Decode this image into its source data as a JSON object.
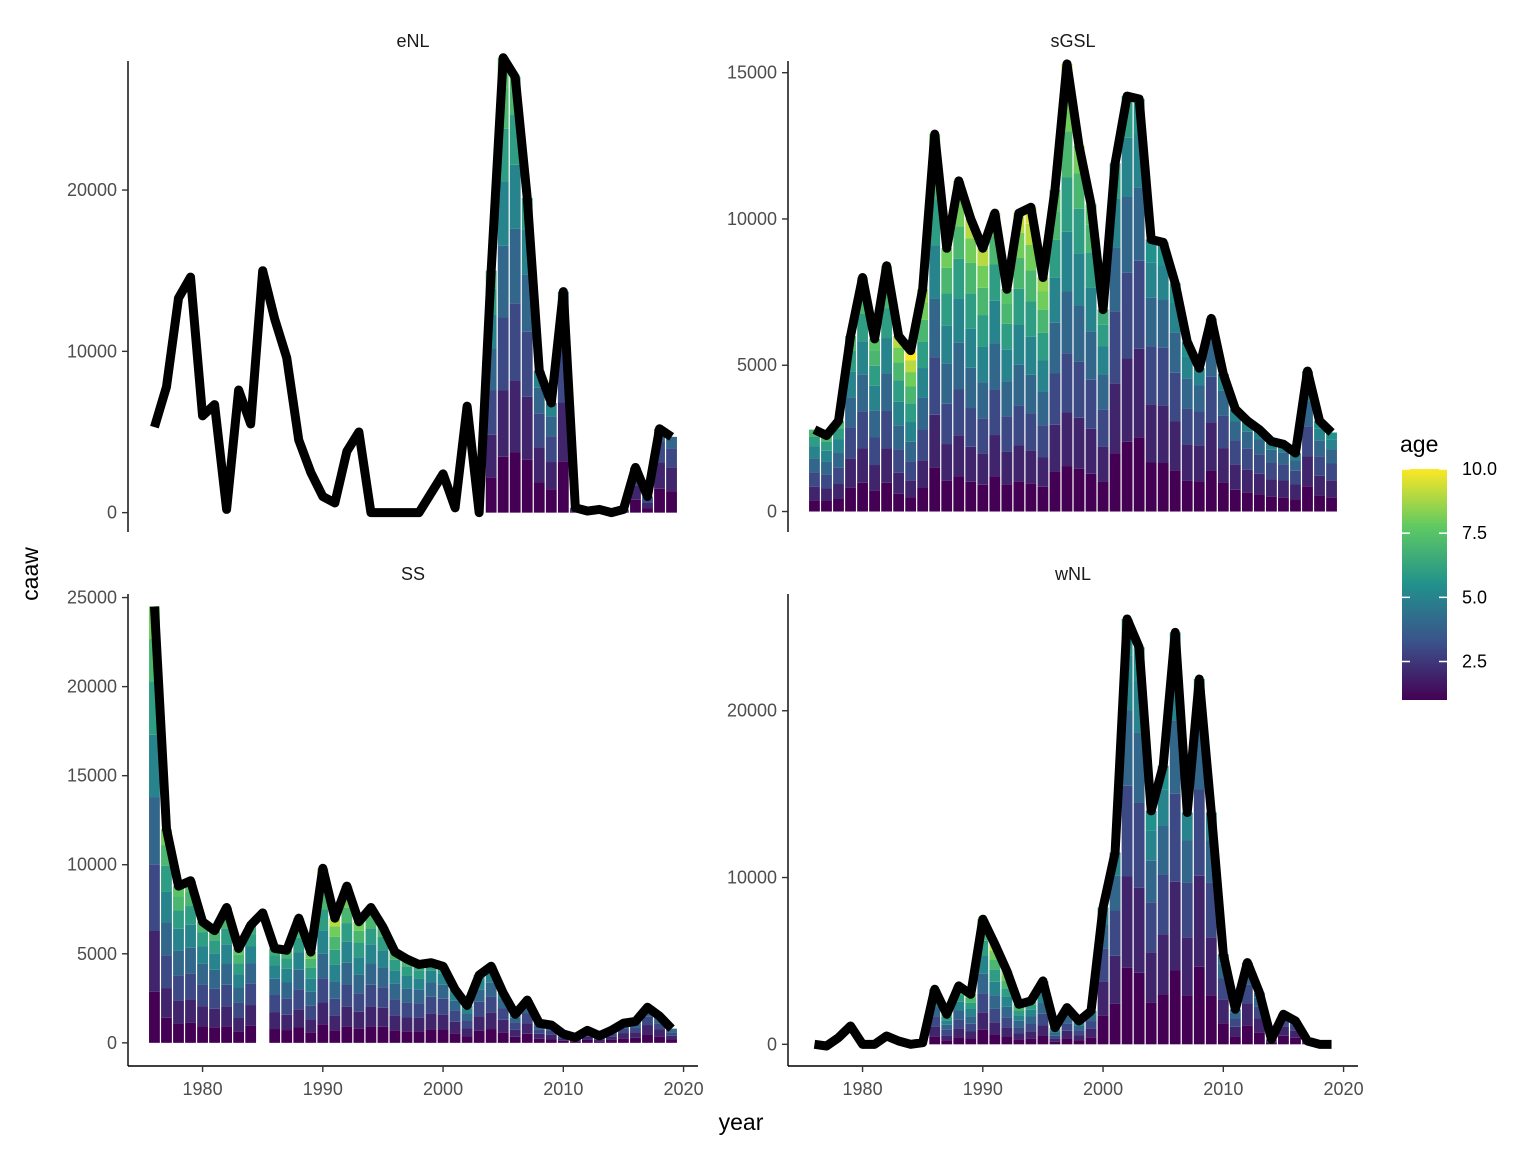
{
  "chart_data": {
    "type": "bar",
    "layout": "faceted stacked bar (by age) with total catch line overlay",
    "xlabel": "year",
    "ylabel": "caaw",
    "legend": {
      "title": "age",
      "ticks": [
        2.5,
        5.0,
        7.5,
        10.0
      ],
      "tick_labels": [
        "2.5",
        "5.0",
        "7.5",
        "10.0"
      ],
      "range": [
        1,
        10
      ],
      "placement": "right",
      "colormap": [
        "#440154",
        "#3b528b",
        "#21918c",
        "#5ec962",
        "#fde725"
      ]
    },
    "line_color": "#000000",
    "age_scale": [
      1,
      10
    ],
    "facets": [
      {
        "name": "eNL",
        "xlim": [
          1973.8,
          2021.2
        ],
        "ylim": [
          -1200,
          28000
        ],
        "xticks": [
          1980,
          1990,
          2000,
          2010,
          2020
        ],
        "yticks": [
          0,
          10000,
          20000
        ],
        "years": [
          1976,
          1977,
          1978,
          1979,
          1980,
          1981,
          1982,
          1983,
          1984,
          1985,
          1986,
          1987,
          1988,
          1989,
          1990,
          1991,
          1992,
          1993,
          1994,
          1995,
          1996,
          1997,
          1998,
          1999,
          2000,
          2001,
          2002,
          2003,
          2004,
          2005,
          2006,
          2007,
          2008,
          2009,
          2010,
          2011,
          2012,
          2013,
          2014,
          2015,
          2016,
          2017,
          2018,
          2019
        ],
        "totals": [
          5300,
          7800,
          13300,
          14600,
          6000,
          6700,
          200,
          7600,
          5500,
          15000,
          12000,
          9600,
          4500,
          2500,
          1000,
          600,
          3800,
          5000,
          0,
          0,
          0,
          0,
          0,
          1200,
          2400,
          300,
          6600,
          0,
          15000,
          28200,
          27000,
          19500,
          8800,
          6800,
          13700,
          300,
          100,
          200,
          0,
          200,
          2800,
          1000,
          5200,
          4700
        ],
        "bars_from": 2003,
        "top_age": [
          null,
          null,
          null,
          null,
          null,
          null,
          null,
          null,
          null,
          null,
          null,
          null,
          null,
          null,
          null,
          null,
          null,
          null,
          null,
          null,
          null,
          null,
          null,
          null,
          null,
          null,
          null,
          5.0,
          6.5,
          7.5,
          7.0,
          6.0,
          5.0,
          5.0,
          4.5,
          4.0,
          4.0,
          4.0,
          4.0,
          4.0,
          4.0,
          4.0,
          4.0,
          4.0
        ]
      },
      {
        "name": "sGSL",
        "xlim": [
          1973.8,
          2021.2
        ],
        "ylim": [
          -700,
          15400
        ],
        "xticks": [
          1980,
          1990,
          2000,
          2010,
          2020
        ],
        "yticks": [
          0,
          5000,
          10000,
          15000
        ],
        "years": [
          1976,
          1977,
          1978,
          1979,
          1980,
          1981,
          1982,
          1983,
          1984,
          1985,
          1986,
          1987,
          1988,
          1989,
          1990,
          1991,
          1992,
          1993,
          1994,
          1995,
          1996,
          1997,
          1998,
          1999,
          2000,
          2001,
          2002,
          2003,
          2004,
          2005,
          2006,
          2007,
          2008,
          2009,
          2010,
          2011,
          2012,
          2013,
          2014,
          2015,
          2016,
          2017,
          2018,
          2019
        ],
        "totals": [
          2800,
          2600,
          3100,
          6000,
          8000,
          5900,
          8400,
          6000,
          5500,
          7600,
          12900,
          9000,
          11300,
          10000,
          9000,
          10200,
          7600,
          10200,
          10400,
          8000,
          11000,
          15300,
          12500,
          10500,
          6900,
          11900,
          14200,
          14100,
          9300,
          9200,
          7800,
          5800,
          4900,
          6600,
          4700,
          3500,
          3100,
          2800,
          2400,
          2300,
          2000,
          4800,
          3100,
          2700
        ],
        "bars_from": 1976,
        "top_age": [
          7.0,
          7.0,
          7.0,
          7.0,
          7.5,
          7.5,
          8.0,
          9.0,
          10.0,
          8.5,
          8.0,
          8.0,
          8.5,
          9.0,
          9.0,
          8.0,
          7.5,
          9.0,
          9.5,
          8.5,
          7.5,
          9.0,
          8.0,
          7.5,
          6.5,
          6.0,
          6.0,
          5.5,
          5.5,
          5.5,
          5.5,
          5.5,
          5.0,
          5.0,
          5.0,
          5.0,
          5.0,
          5.0,
          5.0,
          5.0,
          5.0,
          5.5,
          5.5,
          5.5
        ]
      },
      {
        "name": "SS",
        "xlim": [
          1973.8,
          2021.2
        ],
        "ylim": [
          -1300,
          25200
        ],
        "xticks": [
          1980,
          1990,
          2000,
          2010,
          2020
        ],
        "yticks": [
          0,
          5000,
          10000,
          15000,
          20000,
          25000
        ],
        "years": [
          1976,
          1977,
          1978,
          1979,
          1980,
          1981,
          1982,
          1983,
          1984,
          1985,
          1986,
          1987,
          1988,
          1989,
          1990,
          1991,
          1992,
          1993,
          1994,
          1995,
          1996,
          1997,
          1998,
          1999,
          2000,
          2001,
          2002,
          2003,
          2004,
          2005,
          2006,
          2007,
          2008,
          2009,
          2010,
          2011,
          2012,
          2013,
          2014,
          2015,
          2016,
          2017,
          2018,
          2019
        ],
        "totals": [
          24500,
          12000,
          8800,
          9100,
          6800,
          6300,
          7600,
          5300,
          6600,
          7300,
          5300,
          5200,
          7000,
          5100,
          9800,
          7000,
          8800,
          6800,
          7600,
          6500,
          5100,
          4700,
          4400,
          4500,
          4300,
          3000,
          2100,
          3800,
          4300,
          2800,
          1600,
          2400,
          1100,
          1000,
          500,
          300,
          700,
          400,
          700,
          1100,
          1200,
          2000,
          1500,
          800
        ],
        "bars_from": 1976,
        "top_age": [
          8.0,
          8.0,
          7.5,
          7.5,
          7.0,
          7.0,
          7.5,
          7.5,
          6.5,
          null,
          6.5,
          7.0,
          7.5,
          8.0,
          8.5,
          9.0,
          8.5,
          8.0,
          7.5,
          7.0,
          7.0,
          7.0,
          6.5,
          6.0,
          6.0,
          5.5,
          5.5,
          5.5,
          5.5,
          5.0,
          5.0,
          5.0,
          5.0,
          5.0,
          4.5,
          4.5,
          4.5,
          4.5,
          4.5,
          4.5,
          4.5,
          4.5,
          4.5,
          4.5
        ]
      },
      {
        "name": "wNL",
        "xlim": [
          1973.8,
          2021.2
        ],
        "ylim": [
          -1300,
          27000
        ],
        "xticks": [
          1980,
          1990,
          2000,
          2010,
          2020
        ],
        "yticks": [
          0,
          10000,
          20000
        ],
        "years": [
          1976,
          1977,
          1978,
          1979,
          1980,
          1981,
          1982,
          1983,
          1984,
          1985,
          1986,
          1987,
          1988,
          1989,
          1990,
          1991,
          1992,
          1993,
          1994,
          1995,
          1996,
          1997,
          1998,
          1999,
          2000,
          2001,
          2002,
          2003,
          2004,
          2005,
          2006,
          2007,
          2008,
          2009,
          2010,
          2011,
          2012,
          2013,
          2014,
          2015,
          2016,
          2017,
          2018,
          2019
        ],
        "totals": [
          0,
          -100,
          400,
          1100,
          0,
          0,
          500,
          200,
          0,
          100,
          3300,
          1800,
          3500,
          3000,
          7500,
          6000,
          4400,
          2400,
          2600,
          3800,
          1000,
          2200,
          1400,
          2000,
          8200,
          11500,
          25500,
          23800,
          14000,
          16700,
          24700,
          13900,
          21900,
          13900,
          5400,
          2100,
          4900,
          3100,
          300,
          1800,
          1400,
          200,
          0,
          0
        ],
        "bars_from": 1986,
        "top_age": [
          null,
          null,
          null,
          null,
          null,
          null,
          null,
          null,
          null,
          null,
          6.5,
          7.0,
          7.5,
          8.0,
          8.0,
          9.0,
          8.5,
          7.5,
          7.0,
          7.0,
          6.5,
          6.0,
          5.5,
          5.0,
          5.0,
          5.0,
          5.5,
          5.5,
          5.5,
          5.5,
          5.5,
          5.0,
          5.0,
          5.0,
          4.5,
          4.5,
          4.5,
          4.5,
          4.0,
          4.0,
          4.0,
          4.0,
          4.0,
          4.0
        ]
      }
    ]
  }
}
